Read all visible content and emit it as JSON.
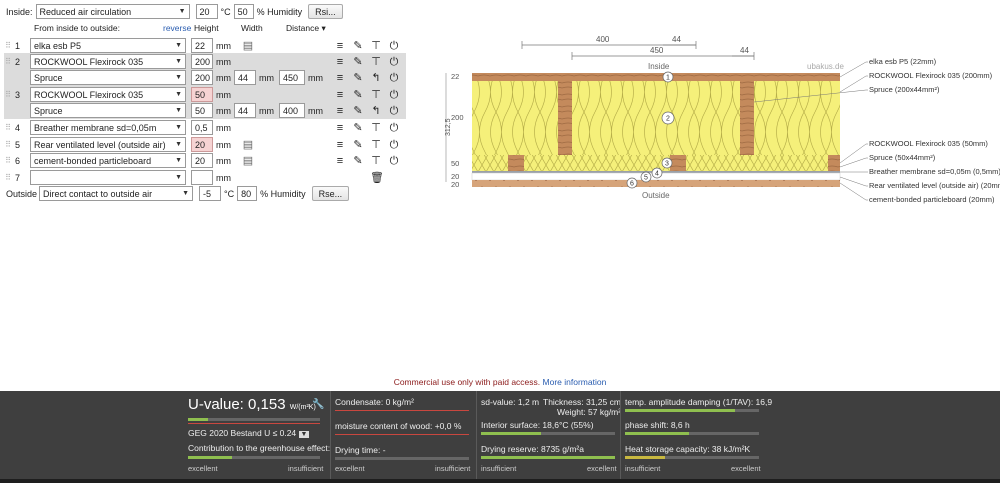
{
  "inside": {
    "label": "Inside:",
    "climate": "Reduced air circulation",
    "temp": "20",
    "temp_unit": "°C",
    "humidity": "50",
    "humidity_unit": "% Humidity",
    "rsi_button": "Rsi..."
  },
  "columns": {
    "from_inside": "From inside to outside:",
    "reverse": "reverse",
    "height": "Height",
    "width": "Width",
    "distance": "Distance",
    "distance_arrow": "▾"
  },
  "unit_mm": "mm",
  "layers": [
    {
      "idx": "1",
      "material": "elka esb P5",
      "height": "22",
      "warn": false,
      "wood_icon": true
    },
    {
      "idx": "2",
      "material": "ROCKWOOL Flexirock 035",
      "height": "200",
      "warn": false
    },
    {
      "idx": "",
      "material": "Spruce",
      "height": "200",
      "width": "44",
      "distance": "450",
      "warn": false
    },
    {
      "idx": "3",
      "material": "ROCKWOOL Flexirock 035",
      "height": "50",
      "warn": true
    },
    {
      "idx": "",
      "material": "Spruce",
      "height": "50",
      "width": "44",
      "distance": "400",
      "warn": false
    },
    {
      "idx": "4",
      "material": "Breather membrane sd=0,05m",
      "height": "0,5",
      "warn": false
    },
    {
      "idx": "5",
      "material": "Rear ventilated level (outside air)",
      "height": "20",
      "warn": true,
      "wood_icon": true
    },
    {
      "idx": "6",
      "material": "cement-bonded particleboard",
      "height": "20",
      "warn": false,
      "wood_icon": true
    },
    {
      "idx": "7",
      "material": "",
      "height": "",
      "warn": false
    }
  ],
  "outside": {
    "label": "Outside",
    "climate": "Direct contact to outside air",
    "temp": "-5",
    "temp_unit": "°C",
    "humidity": "80",
    "humidity_unit": "% Humidity",
    "rse_button": "Rse..."
  },
  "diagram": {
    "dim_400": "400",
    "dim_44a": "44",
    "dim_450": "450",
    "dim_44b": "44",
    "inside": "Inside",
    "outside": "Outside",
    "watermark": "ubakus.de",
    "dim_22": "22",
    "dim_200": "200",
    "dim_312": "312,5",
    "dim_50": "50",
    "dim_20a": "20",
    "dim_20b": "20",
    "legend": [
      "elka esb P5 (22mm)",
      "ROCKWOOL Flexirock 035 (200mm)",
      "Spruce (200x44mm²)",
      "ROCKWOOL Flexirock 035 (50mm)",
      "Spruce (50x44mm²)",
      "Breather membrane sd=0,05m (0,5mm)",
      "Rear ventilated level (outside air) (20mm)",
      "cement-bonded particleboard (20mm)"
    ],
    "markers": [
      "1",
      "2",
      "3",
      "4",
      "5",
      "6"
    ]
  },
  "commercial": {
    "text": "Commercial use only with paid access.",
    "link": "More information"
  },
  "results": {
    "u_label": "U-value:",
    "u_value": "0,153",
    "u_unit": "W/(m²K)",
    "geg": "GEG 2020 Bestand U ≤ 0.24",
    "greenhouse": "Contribution to the greenhouse effect:",
    "excellent": "excellent",
    "insufficient": "insufficient",
    "condensate": "Condensate: 0 kg/m²",
    "moisture": "moisture content of wood: +0,0 %",
    "drying_time": "Drying time: -",
    "sd_value": "sd-value: 1,2 m",
    "thickness": "Thickness: 31,25 cm",
    "weight": "Weight: 57 kg/m²",
    "interior_surface": "Interior surface: 18,6°C (55%)",
    "drying_reserve": "Drying reserve: 8735 g/m²a",
    "temp_amplitude": "temp. amplitude damping (1/TAV): 16,9",
    "phase_shift": "phase shift: 8,6 h",
    "heat_storage": "Heat storage capacity: 38 kJ/m²K"
  },
  "colors": {
    "insulation": "#f5f07a",
    "wood": "#b07a55",
    "bar_good": "#8fbf4f",
    "bar_bad": "#c9473f"
  }
}
